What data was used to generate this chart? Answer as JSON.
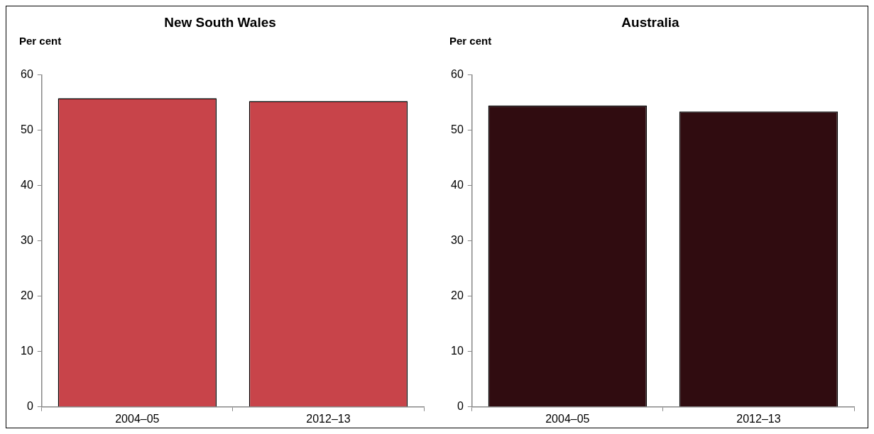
{
  "chart_data": [
    {
      "type": "bar",
      "title": "New South Wales",
      "ylabel": "Per cent",
      "categories": [
        "2004–05",
        "2012–13"
      ],
      "values": [
        55.8,
        55.3
      ],
      "color": "#c8444a",
      "ylim": [
        0,
        60
      ],
      "yticks": [
        0,
        10,
        20,
        30,
        40,
        50,
        60
      ]
    },
    {
      "type": "bar",
      "title": "Australia",
      "ylabel": "Per cent",
      "categories": [
        "2004–05",
        "2012–13"
      ],
      "values": [
        54.5,
        53.4
      ],
      "color": "#300c10",
      "ylim": [
        0,
        60
      ],
      "yticks": [
        0,
        10,
        20,
        30,
        40,
        50,
        60
      ]
    }
  ]
}
